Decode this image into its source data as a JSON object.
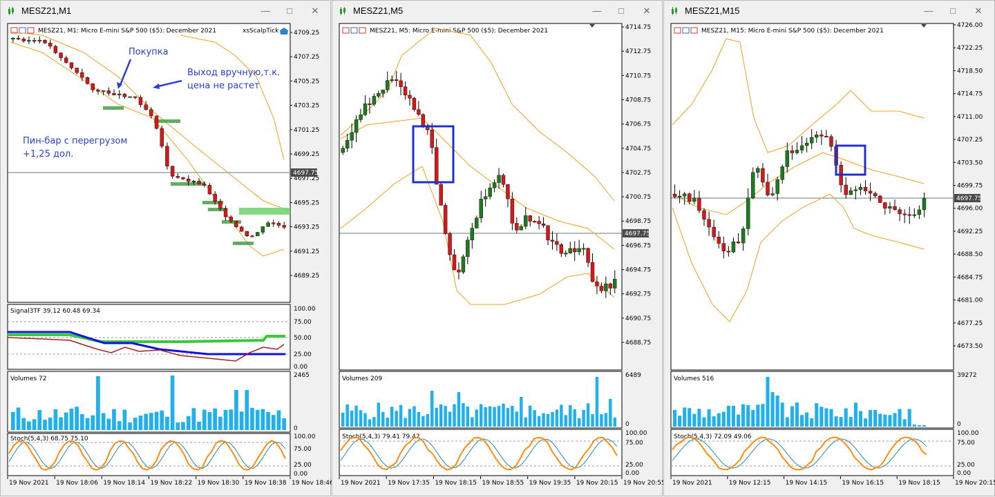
{
  "windows": [
    {
      "title": "MESZ21,M1",
      "header": "MESZ21, M1:  Micro E-mini S&P 500 ($5): December 2021",
      "ea": "xsScalpTick",
      "price_labels": [
        "4709.25",
        "4707.25",
        "4705.25",
        "4703.25",
        "4701.25",
        "4699.25",
        "4697.25",
        "4695.25",
        "4693.25",
        "4691.25",
        "4689.25"
      ],
      "current_price": "4697.75",
      "ind_header": "Signal3TF 39.12 60.48 69.34",
      "ind_labels": [
        "100.00",
        "75.00",
        "50.00",
        "25.00",
        "0.00"
      ],
      "vol_header": "Volumes 72",
      "vol_labels": [
        "2465",
        "0"
      ],
      "stoch_header": "Stoch(5,4,3) 68.75 75.10",
      "stoch_labels": [
        "100.00",
        "75.00",
        "25.00",
        "0.00"
      ],
      "time_labels": [
        "19 Nov 2021",
        "19 Nov 18:06",
        "19 Nov 18:14",
        "19 Nov 18:22",
        "19 Nov 18:30",
        "19 Nov 18:38",
        "19 Nov 18:46"
      ],
      "annotations": {
        "buy": "Покупка",
        "exit_line1": "Выход вручную,т.к.",
        "exit_line2": "цена не растет",
        "pin_line1": "Пин-бар с перегрузом",
        "pin_line2": "+1,25 дол."
      }
    },
    {
      "title": "MESZ21,M5",
      "header": "MESZ21, M5:  Micro E-mini S&P 500 ($5): December 2021",
      "price_labels": [
        "4714.75",
        "4712.75",
        "4710.75",
        "4708.75",
        "4706.75",
        "4704.75",
        "4702.75",
        "4700.75",
        "4698.75",
        "4696.75",
        "4694.75",
        "4692.75",
        "4690.75",
        "4688.75"
      ],
      "current_price": "4697.75",
      "vol_header": "Volumes 209",
      "vol_labels": [
        "6489",
        "0"
      ],
      "stoch_header": "Stoch(5,4,3) 79.41 79.42",
      "stoch_labels": [
        "100.00",
        "75.00",
        "25.00",
        "0.00"
      ],
      "time_labels": [
        "19 Nov 2021",
        "19 Nov 17:35",
        "19 Nov 18:15",
        "19 Nov 18:55",
        "19 Nov 19:35",
        "19 Nov 20:15",
        "19 Nov 20:55"
      ]
    },
    {
      "title": "MESZ21,M15",
      "header": "MESZ21, M15:  Micro E-mini S&P 500 ($5): December 2021",
      "price_labels": [
        "4726.00",
        "4722.25",
        "4718.50",
        "4714.75",
        "4711.00",
        "4707.25",
        "4703.50",
        "4699.75",
        "4696.00",
        "4692.25",
        "4688.50",
        "4684.75",
        "4681.00",
        "4677.25",
        "4673.50"
      ],
      "current_price": "4697.75",
      "vol_header": "Volumes 516",
      "vol_labels": [
        "39272",
        "0"
      ],
      "stoch_header": "Stoch(5,4,3) 72.09 49.06",
      "stoch_labels": [
        "100.00",
        "75.00",
        "25.00",
        "0.00"
      ],
      "time_labels": [
        "19 Nov 2021",
        "19 Nov 12:15",
        "19 Nov 14:15",
        "19 Nov 16:15",
        "19 Nov 18:15",
        "19 Nov 20:15"
      ]
    }
  ],
  "colors": {
    "bull": "#1f7a1f",
    "bear": "#d11a1a",
    "band": "#f0a020",
    "annotation": "#2a3fd6",
    "box": "#1f2fd0",
    "ind_blue": "#1010e0",
    "ind_green": "#3cc83c",
    "ind_red": "#a02020",
    "vol": "#20b0ee",
    "stoch_main": "#ff8c10",
    "stoch_sig": "#2a8aa0"
  },
  "icons": [
    "chart-window-icon",
    "minimize-icon",
    "maximize-icon",
    "close-icon"
  ],
  "chart_data": [
    {
      "type": "candlestick",
      "symbol": "MESZ21",
      "timeframe": "M1",
      "last_price": 4697.75,
      "ylim": [
        4688.25,
        4710.0
      ],
      "x_ticks": [
        "19 Nov 2021",
        "19 Nov 18:06",
        "19 Nov 18:14",
        "19 Nov 18:22",
        "19 Nov 18:30",
        "19 Nov 18:38",
        "19 Nov 18:46"
      ]
    },
    {
      "type": "candlestick",
      "symbol": "MESZ21",
      "timeframe": "M5",
      "last_price": 4697.75,
      "ylim": [
        4687.0,
        4715.0
      ],
      "x_ticks": [
        "19 Nov 2021",
        "19 Nov 17:35",
        "19 Nov 18:15",
        "19 Nov 18:55",
        "19 Nov 19:35",
        "19 Nov 20:15",
        "19 Nov 20:55"
      ]
    },
    {
      "type": "candlestick",
      "symbol": "MESZ21",
      "timeframe": "M15",
      "last_price": 4697.75,
      "ylim": [
        4671.0,
        4726.5
      ],
      "x_ticks": [
        "19 Nov 2021",
        "19 Nov 12:15",
        "19 Nov 14:15",
        "19 Nov 16:15",
        "19 Nov 18:15",
        "19 Nov 20:15"
      ]
    }
  ]
}
